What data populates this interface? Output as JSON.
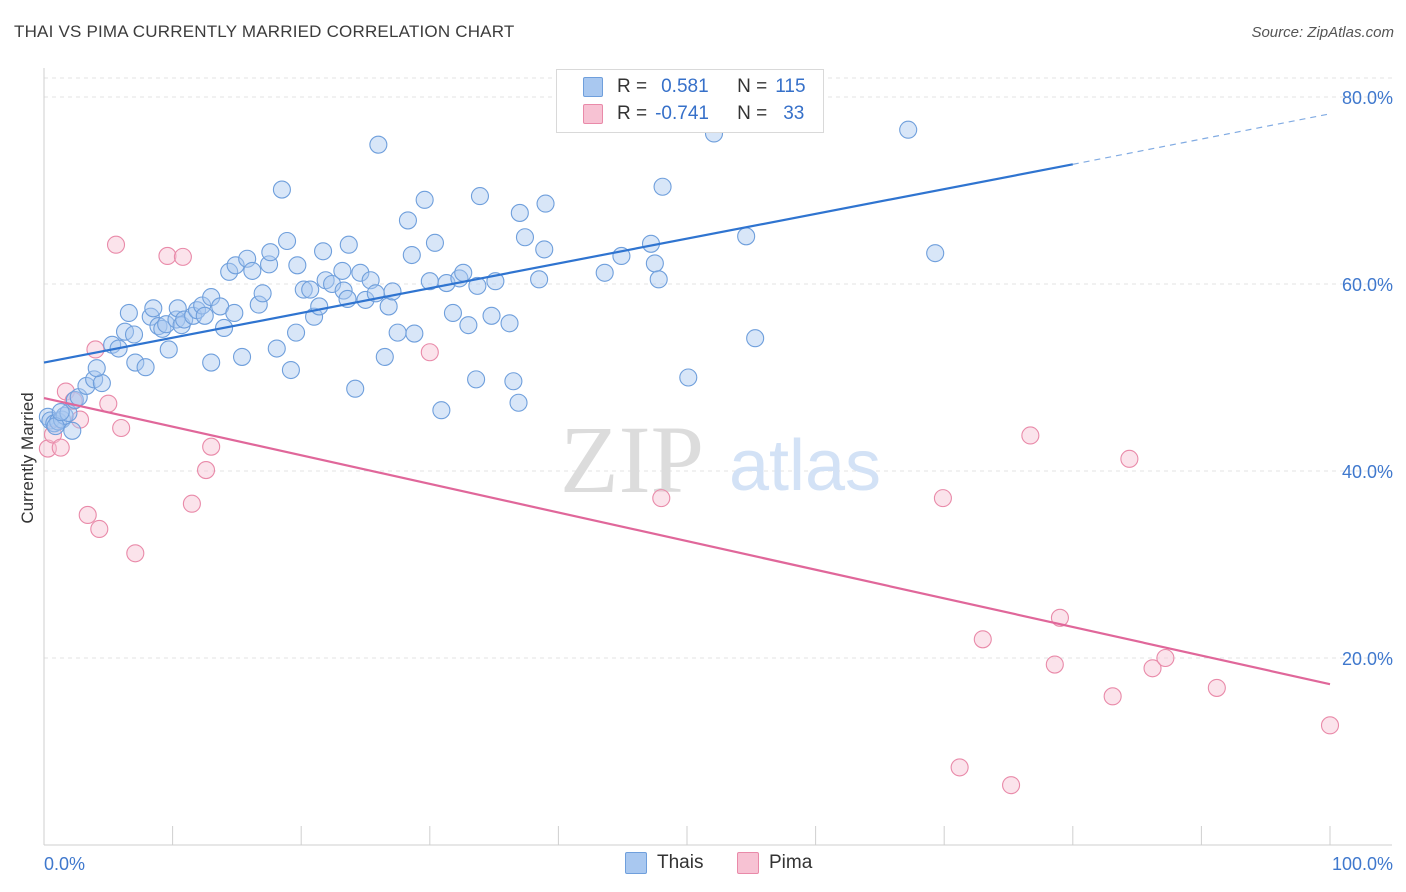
{
  "title": "THAI VS PIMA CURRENTLY MARRIED CORRELATION CHART",
  "source": "Source: ZipAtlas.com",
  "watermark": {
    "zip": "ZIP",
    "atlas": "atlas"
  },
  "legend": {
    "rows": [
      {
        "r_label": "R =",
        "r_value": "0.581",
        "n_label": "N =",
        "n_value": "115",
        "color": "#a9c8f0",
        "border": "#6f9fdc"
      },
      {
        "r_label": "R =",
        "r_value": "-0.741",
        "n_label": "N =",
        "n_value": "33",
        "color": "#f7c2d3",
        "border": "#e98aa9"
      }
    ]
  },
  "bottom_legend": [
    {
      "label": "Thais",
      "color": "#a9c8f0",
      "border": "#6f9fdc"
    },
    {
      "label": "Pima",
      "color": "#f7c2d3",
      "border": "#e98aa9"
    }
  ],
  "colors": {
    "blue_point_fill": "rgba(169,200,240,0.45)",
    "blue_point_stroke": "#6f9fdc",
    "blue_line": "#2f74d0",
    "pink_point_fill": "rgba(247,194,211,0.45)",
    "pink_point_stroke": "#e98aa9",
    "pink_line": "#e0679a",
    "axis_label": "#3f78cd",
    "grid": "#e3e3e3"
  },
  "chart_data": {
    "type": "scatter",
    "title": "THAI VS PIMA CURRENTLY MARRIED CORRELATION CHART",
    "xlabel": "",
    "ylabel": "Currently Married",
    "xlim": [
      0,
      100
    ],
    "ylim": [
      0,
      80
    ],
    "x_ticks": [
      "0.0%",
      "100.0%"
    ],
    "y_ticks": [
      {
        "value": 20,
        "label": "20.0%"
      },
      {
        "value": 40,
        "label": "40.0%"
      },
      {
        "value": 60,
        "label": "60.0%"
      },
      {
        "value": 80,
        "label": "80.0%"
      }
    ],
    "grid": true,
    "legend_position": "top-center",
    "series": [
      {
        "name": "Thais",
        "r": 0.581,
        "n": 115,
        "trend": {
          "x0": 0,
          "y0": 51.6,
          "x1": 80,
          "y1": 72.8,
          "dashed_to_x": 100,
          "dashed_to_y": 78.2
        },
        "points": [
          [
            0.3,
            45.8
          ],
          [
            0.5,
            45.4
          ],
          [
            0.8,
            45.1
          ],
          [
            1.1,
            45.3
          ],
          [
            1.4,
            45.5
          ],
          [
            1.6,
            45.9
          ],
          [
            1.9,
            46.2
          ],
          [
            2.2,
            44.3
          ],
          [
            0.9,
            44.8
          ],
          [
            1.3,
            46.3
          ],
          [
            2.4,
            47.6
          ],
          [
            2.7,
            47.9
          ],
          [
            3.3,
            49.1
          ],
          [
            3.9,
            49.8
          ],
          [
            4.5,
            49.4
          ],
          [
            4.1,
            51.0
          ],
          [
            5.3,
            53.5
          ],
          [
            5.8,
            53.1
          ],
          [
            6.3,
            54.9
          ],
          [
            6.6,
            56.9
          ],
          [
            7.0,
            54.6
          ],
          [
            7.1,
            51.6
          ],
          [
            7.9,
            51.1
          ],
          [
            8.3,
            56.5
          ],
          [
            8.5,
            57.4
          ],
          [
            8.9,
            55.5
          ],
          [
            9.2,
            55.2
          ],
          [
            9.5,
            55.7
          ],
          [
            9.7,
            53.0
          ],
          [
            10.3,
            56.2
          ],
          [
            10.4,
            57.4
          ],
          [
            10.7,
            55.6
          ],
          [
            10.9,
            56.2
          ],
          [
            11.6,
            56.6
          ],
          [
            11.9,
            57.2
          ],
          [
            12.3,
            57.7
          ],
          [
            12.5,
            56.6
          ],
          [
            13.0,
            58.6
          ],
          [
            13.0,
            51.6
          ],
          [
            13.7,
            57.6
          ],
          [
            14.0,
            55.3
          ],
          [
            14.4,
            61.3
          ],
          [
            14.8,
            56.9
          ],
          [
            14.9,
            62.0
          ],
          [
            15.4,
            52.2
          ],
          [
            15.8,
            62.7
          ],
          [
            16.2,
            61.4
          ],
          [
            16.7,
            57.8
          ],
          [
            17.0,
            59.0
          ],
          [
            17.5,
            62.1
          ],
          [
            17.6,
            63.4
          ],
          [
            18.1,
            53.1
          ],
          [
            18.5,
            70.1
          ],
          [
            18.9,
            64.6
          ],
          [
            19.2,
            50.8
          ],
          [
            19.6,
            54.8
          ],
          [
            19.7,
            62.0
          ],
          [
            20.2,
            59.4
          ],
          [
            20.7,
            59.4
          ],
          [
            21.0,
            56.5
          ],
          [
            21.4,
            57.6
          ],
          [
            21.7,
            63.5
          ],
          [
            21.9,
            60.4
          ],
          [
            22.4,
            60.0
          ],
          [
            23.2,
            61.4
          ],
          [
            23.3,
            59.3
          ],
          [
            23.6,
            58.4
          ],
          [
            23.7,
            64.2
          ],
          [
            24.2,
            48.8
          ],
          [
            24.6,
            61.2
          ],
          [
            25.0,
            58.3
          ],
          [
            25.4,
            60.4
          ],
          [
            25.8,
            59.0
          ],
          [
            26.0,
            74.9
          ],
          [
            26.5,
            52.2
          ],
          [
            26.8,
            57.6
          ],
          [
            27.1,
            59.2
          ],
          [
            27.5,
            54.8
          ],
          [
            28.3,
            66.8
          ],
          [
            28.6,
            63.1
          ],
          [
            28.8,
            54.7
          ],
          [
            29.6,
            69.0
          ],
          [
            30.0,
            60.3
          ],
          [
            30.4,
            64.4
          ],
          [
            30.9,
            46.5
          ],
          [
            31.3,
            60.1
          ],
          [
            31.8,
            56.9
          ],
          [
            32.3,
            60.6
          ],
          [
            32.6,
            61.2
          ],
          [
            33.0,
            55.6
          ],
          [
            33.6,
            49.8
          ],
          [
            33.7,
            59.8
          ],
          [
            33.9,
            69.4
          ],
          [
            34.8,
            56.6
          ],
          [
            35.1,
            60.3
          ],
          [
            36.2,
            55.8
          ],
          [
            36.5,
            49.6
          ],
          [
            36.9,
            47.3
          ],
          [
            37.0,
            67.6
          ],
          [
            37.4,
            65.0
          ],
          [
            38.5,
            60.5
          ],
          [
            38.9,
            63.7
          ],
          [
            39.0,
            68.6
          ],
          [
            43.6,
            61.2
          ],
          [
            44.9,
            63.0
          ],
          [
            47.2,
            64.3
          ],
          [
            47.5,
            62.2
          ],
          [
            47.8,
            60.5
          ],
          [
            48.1,
            70.4
          ],
          [
            50.1,
            50.0
          ],
          [
            52.1,
            76.1
          ],
          [
            54.6,
            65.1
          ],
          [
            55.3,
            54.2
          ],
          [
            67.2,
            76.5
          ],
          [
            69.3,
            63.3
          ]
        ]
      },
      {
        "name": "Pima",
        "r": -0.741,
        "n": 33,
        "trend": {
          "x0": 0,
          "y0": 47.8,
          "x1": 100,
          "y1": 17.2
        },
        "points": [
          [
            0.3,
            42.4
          ],
          [
            0.7,
            43.9
          ],
          [
            1.3,
            42.5
          ],
          [
            1.7,
            48.5
          ],
          [
            2.3,
            47.5
          ],
          [
            2.8,
            45.5
          ],
          [
            3.4,
            35.3
          ],
          [
            4.0,
            53.0
          ],
          [
            4.3,
            33.8
          ],
          [
            5.0,
            47.2
          ],
          [
            5.6,
            64.2
          ],
          [
            6.0,
            44.6
          ],
          [
            7.1,
            31.2
          ],
          [
            9.6,
            63.0
          ],
          [
            10.8,
            62.9
          ],
          [
            11.5,
            36.5
          ],
          [
            12.6,
            40.1
          ],
          [
            13.0,
            42.6
          ],
          [
            30.0,
            52.7
          ],
          [
            48.0,
            37.1
          ],
          [
            69.9,
            37.1
          ],
          [
            71.2,
            8.3
          ],
          [
            73.0,
            22.0
          ],
          [
            75.2,
            6.4
          ],
          [
            76.7,
            43.8
          ],
          [
            78.6,
            19.3
          ],
          [
            79.0,
            24.3
          ],
          [
            83.1,
            15.9
          ],
          [
            84.4,
            41.3
          ],
          [
            86.2,
            18.9
          ],
          [
            87.2,
            20.0
          ],
          [
            91.2,
            16.8
          ],
          [
            100.0,
            12.8
          ]
        ]
      }
    ]
  }
}
